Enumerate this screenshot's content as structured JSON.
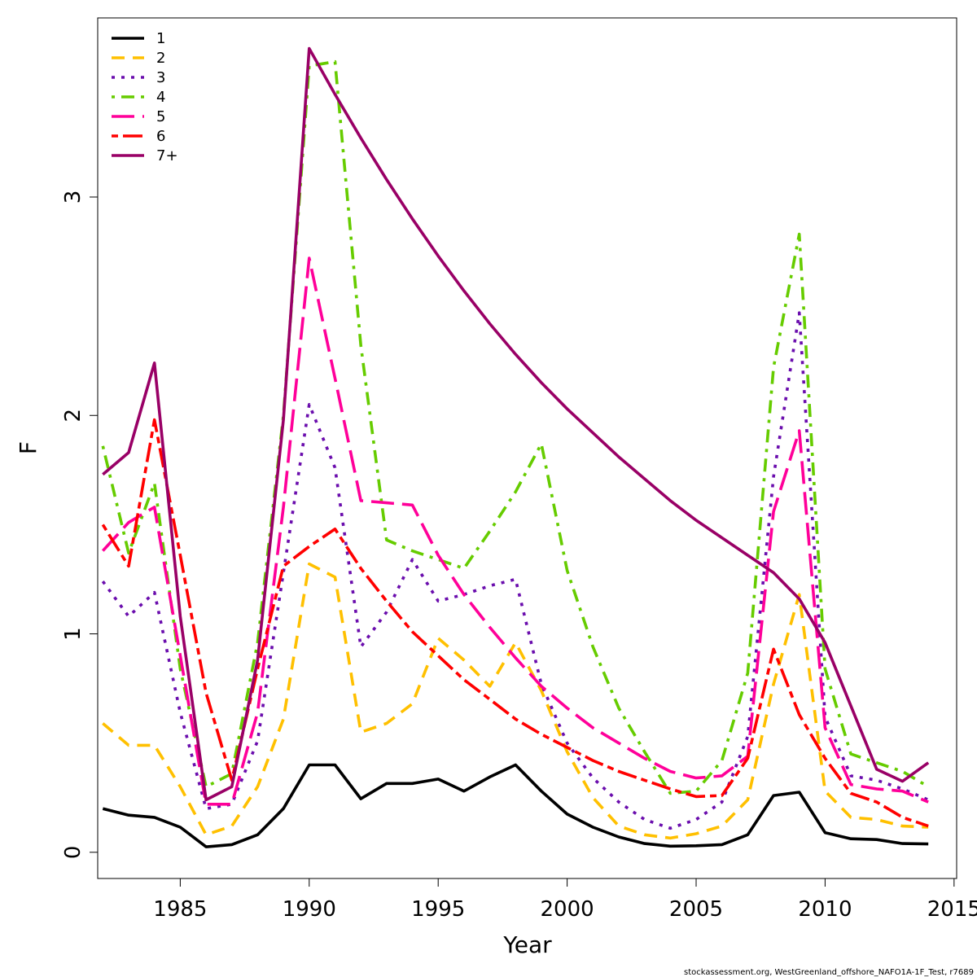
{
  "chart_data": {
    "type": "line",
    "xlabel": "Year",
    "ylabel": "F",
    "xlim": [
      1981.8,
      2015.1
    ],
    "ylim": [
      -0.12,
      3.82
    ],
    "x_ticks": [
      1985,
      1990,
      1995,
      2000,
      2005,
      2010,
      2015
    ],
    "y_ticks": [
      0,
      1,
      2,
      3
    ],
    "grid": false,
    "legend_position": "top-left",
    "x": [
      1982,
      1983,
      1984,
      1985,
      1986,
      1987,
      1988,
      1989,
      1990,
      1991,
      1992,
      1993,
      1994,
      1995,
      1996,
      1997,
      1998,
      1999,
      2000,
      2001,
      2002,
      2003,
      2004,
      2005,
      2006,
      2007,
      2008,
      2009,
      2010,
      2011,
      2012,
      2013,
      2014
    ],
    "series": [
      {
        "name": "1",
        "color": "#000000",
        "dash": "solid",
        "values": [
          0.2,
          0.17,
          0.16,
          0.115,
          0.025,
          0.035,
          0.08,
          0.2,
          0.4,
          0.4,
          0.245,
          0.315,
          0.315,
          0.335,
          0.28,
          0.345,
          0.4,
          0.28,
          0.175,
          0.115,
          0.07,
          0.04,
          0.028,
          0.03,
          0.035,
          0.08,
          0.26,
          0.275,
          0.09,
          0.062,
          0.058,
          0.04,
          0.038
        ]
      },
      {
        "name": "2",
        "color": "#FFC000",
        "dash": "dashed",
        "values": [
          0.59,
          0.49,
          0.49,
          0.3,
          0.08,
          0.12,
          0.3,
          0.61,
          1.32,
          1.26,
          0.55,
          0.59,
          0.68,
          0.98,
          0.88,
          0.76,
          0.96,
          0.74,
          0.46,
          0.25,
          0.12,
          0.08,
          0.065,
          0.085,
          0.12,
          0.24,
          0.77,
          1.18,
          0.28,
          0.16,
          0.15,
          0.12,
          0.115
        ]
      },
      {
        "name": "3",
        "color": "#6A0DAD",
        "dash": "dotted",
        "values": [
          1.24,
          1.08,
          1.19,
          0.64,
          0.2,
          0.22,
          0.51,
          1.28,
          2.05,
          1.76,
          0.94,
          1.1,
          1.34,
          1.15,
          1.18,
          1.22,
          1.25,
          0.77,
          0.5,
          0.34,
          0.23,
          0.15,
          0.11,
          0.15,
          0.23,
          0.53,
          1.72,
          2.47,
          0.62,
          0.35,
          0.33,
          0.29,
          0.24
        ]
      },
      {
        "name": "4",
        "color": "#66CC00",
        "dash": "dotdash",
        "values": [
          1.86,
          1.37,
          1.69,
          0.84,
          0.3,
          0.36,
          0.96,
          2.0,
          3.6,
          3.62,
          2.32,
          1.43,
          1.38,
          1.34,
          1.3,
          1.47,
          1.65,
          1.87,
          1.29,
          0.94,
          0.66,
          0.46,
          0.27,
          0.28,
          0.42,
          0.82,
          2.22,
          2.83,
          0.84,
          0.45,
          0.41,
          0.37,
          0.3
        ]
      },
      {
        "name": "5",
        "color": "#FF0099",
        "dash": "longdash",
        "values": [
          1.38,
          1.51,
          1.58,
          0.9,
          0.22,
          0.22,
          0.64,
          1.58,
          2.72,
          2.17,
          1.61,
          1.6,
          1.59,
          1.36,
          1.18,
          1.03,
          0.89,
          0.76,
          0.66,
          0.57,
          0.5,
          0.43,
          0.37,
          0.34,
          0.35,
          0.44,
          1.56,
          1.93,
          0.57,
          0.31,
          0.29,
          0.28,
          0.23
        ]
      },
      {
        "name": "6",
        "color": "#FF0000",
        "dash": "twodash",
        "values": [
          1.5,
          1.31,
          1.98,
          1.36,
          0.73,
          0.33,
          0.84,
          1.31,
          1.4,
          1.48,
          1.3,
          1.15,
          1.01,
          0.9,
          0.79,
          0.7,
          0.61,
          0.54,
          0.48,
          0.42,
          0.37,
          0.33,
          0.29,
          0.255,
          0.26,
          0.43,
          0.93,
          0.63,
          0.43,
          0.27,
          0.23,
          0.16,
          0.12
        ]
      },
      {
        "name": "7+",
        "color": "#990066",
        "dash": "solid",
        "values": [
          1.73,
          1.83,
          2.24,
          1.08,
          0.24,
          0.3,
          0.88,
          1.98,
          3.68,
          3.47,
          3.27,
          3.08,
          2.9,
          2.73,
          2.57,
          2.42,
          2.28,
          2.15,
          2.03,
          1.92,
          1.81,
          1.71,
          1.61,
          1.52,
          1.44,
          1.36,
          1.28,
          1.16,
          0.96,
          0.67,
          0.38,
          0.325,
          0.41
        ]
      }
    ]
  },
  "footer": "stockassessment.org, WestGreenland_offshore_NAFO1A-1F_Test, r7689"
}
